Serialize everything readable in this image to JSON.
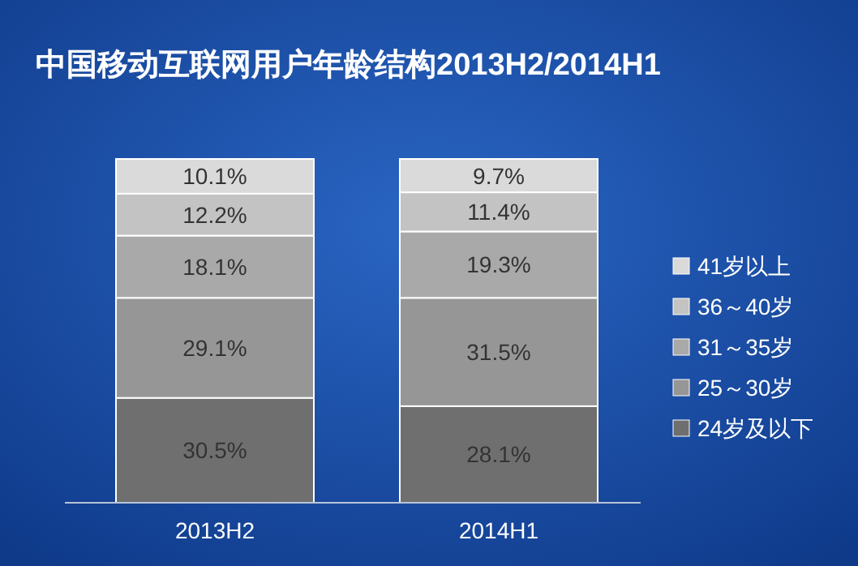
{
  "chart_data": {
    "type": "bar",
    "title": "中国移动互联网用户年龄结构2013H2/2014H1",
    "categories": [
      "2013H2",
      "2014H1"
    ],
    "stacked": true,
    "legend": "right",
    "series": [
      {
        "name": "24岁及以下",
        "color": "#6f6f6f",
        "values": [
          30.5,
          28.1
        ],
        "value_labels": [
          "30.5%",
          "28.1%"
        ]
      },
      {
        "name": "25～30岁",
        "color": "#969696",
        "values": [
          29.1,
          31.5
        ],
        "value_labels": [
          "29.1%",
          "31.5%"
        ]
      },
      {
        "name": "31～35岁",
        "color": "#a9a9a9",
        "values": [
          18.1,
          19.3
        ],
        "value_labels": [
          "18.1%",
          "19.3%"
        ]
      },
      {
        "name": "36～40岁",
        "color": "#c3c3c3",
        "values": [
          12.2,
          11.4
        ],
        "value_labels": [
          "12.2%",
          "11.4%"
        ]
      },
      {
        "name": "41岁以上",
        "color": "#dadada",
        "values": [
          10.1,
          9.7
        ],
        "value_labels": [
          "10.1%",
          "9.7%"
        ]
      }
    ]
  }
}
